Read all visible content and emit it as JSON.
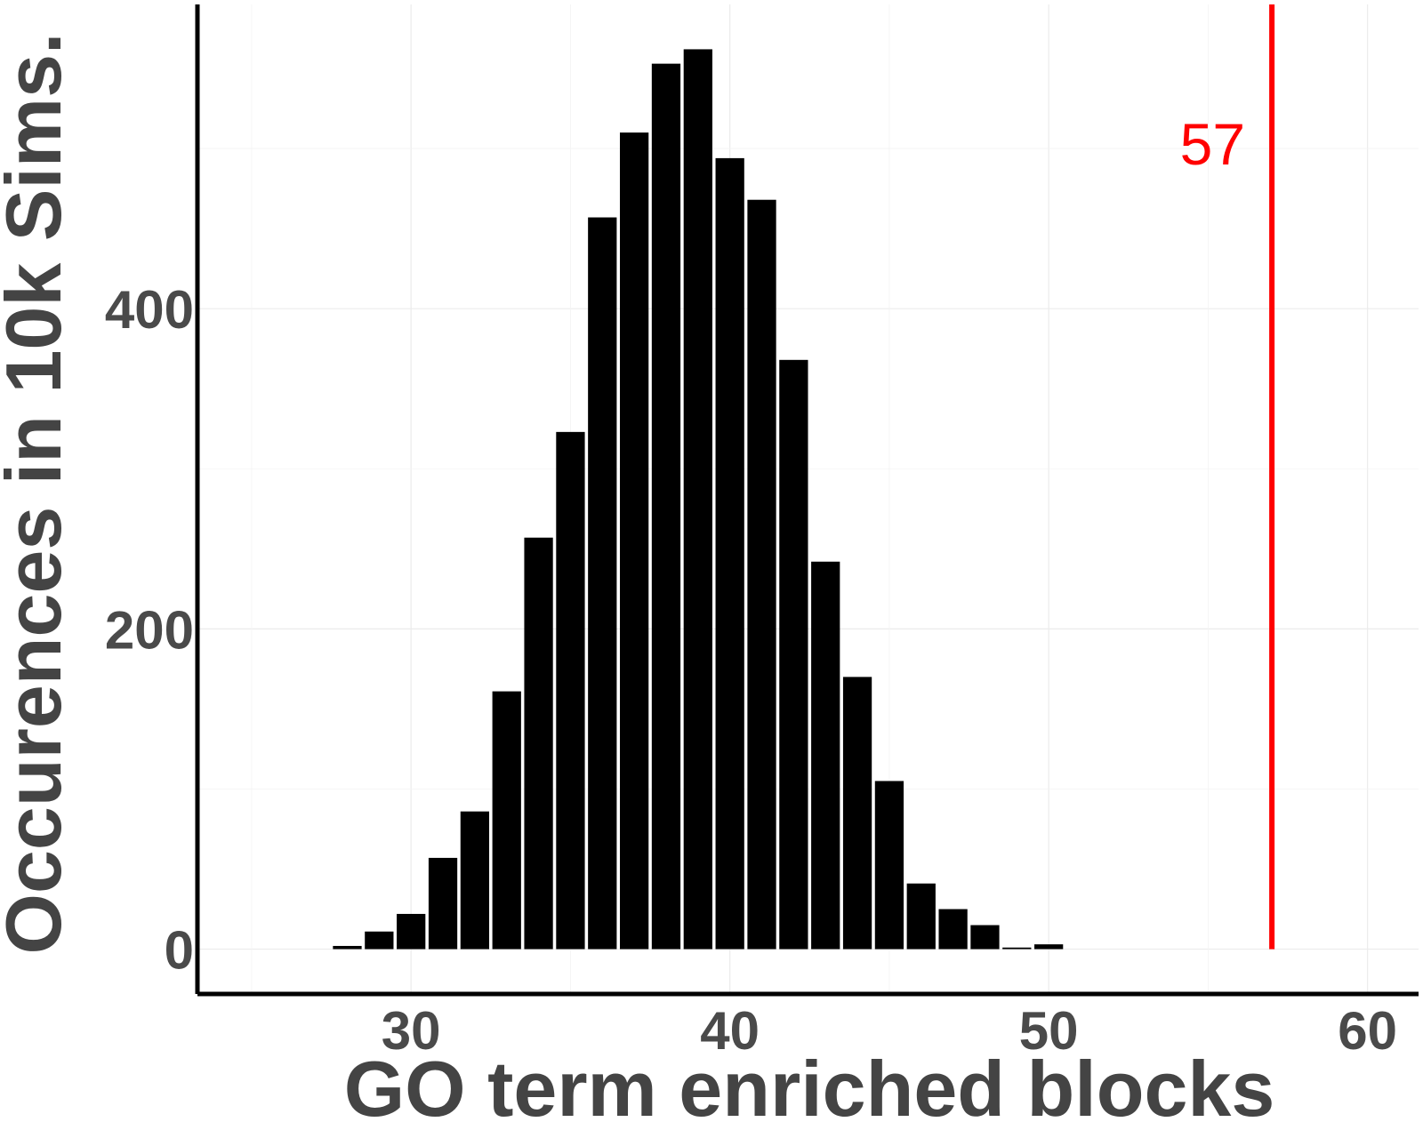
{
  "chart_data": {
    "type": "bar",
    "title": "",
    "xlabel": "GO term enriched blocks",
    "ylabel": "Occurences in 10k Sims.",
    "xlim": [
      23.3,
      61.6
    ],
    "ylim": [
      -28,
      590
    ],
    "x_ticks": [
      30,
      40,
      50,
      60
    ],
    "y_ticks": [
      0,
      200,
      400
    ],
    "grid": true,
    "legend": "none",
    "bar_color": "#000000",
    "x": [
      28,
      29,
      30,
      31,
      32,
      33,
      34,
      35,
      36,
      37,
      38,
      39,
      40,
      41,
      42,
      43,
      44,
      45,
      46,
      47,
      48,
      49,
      50
    ],
    "values": [
      2,
      11,
      22,
      57,
      86,
      161,
      257,
      323,
      457,
      510,
      553,
      562,
      494,
      468,
      368,
      242,
      170,
      105,
      41,
      25,
      15,
      1,
      3
    ],
    "observed": {
      "value": 57,
      "label": "57",
      "color": "#ff0000"
    }
  }
}
